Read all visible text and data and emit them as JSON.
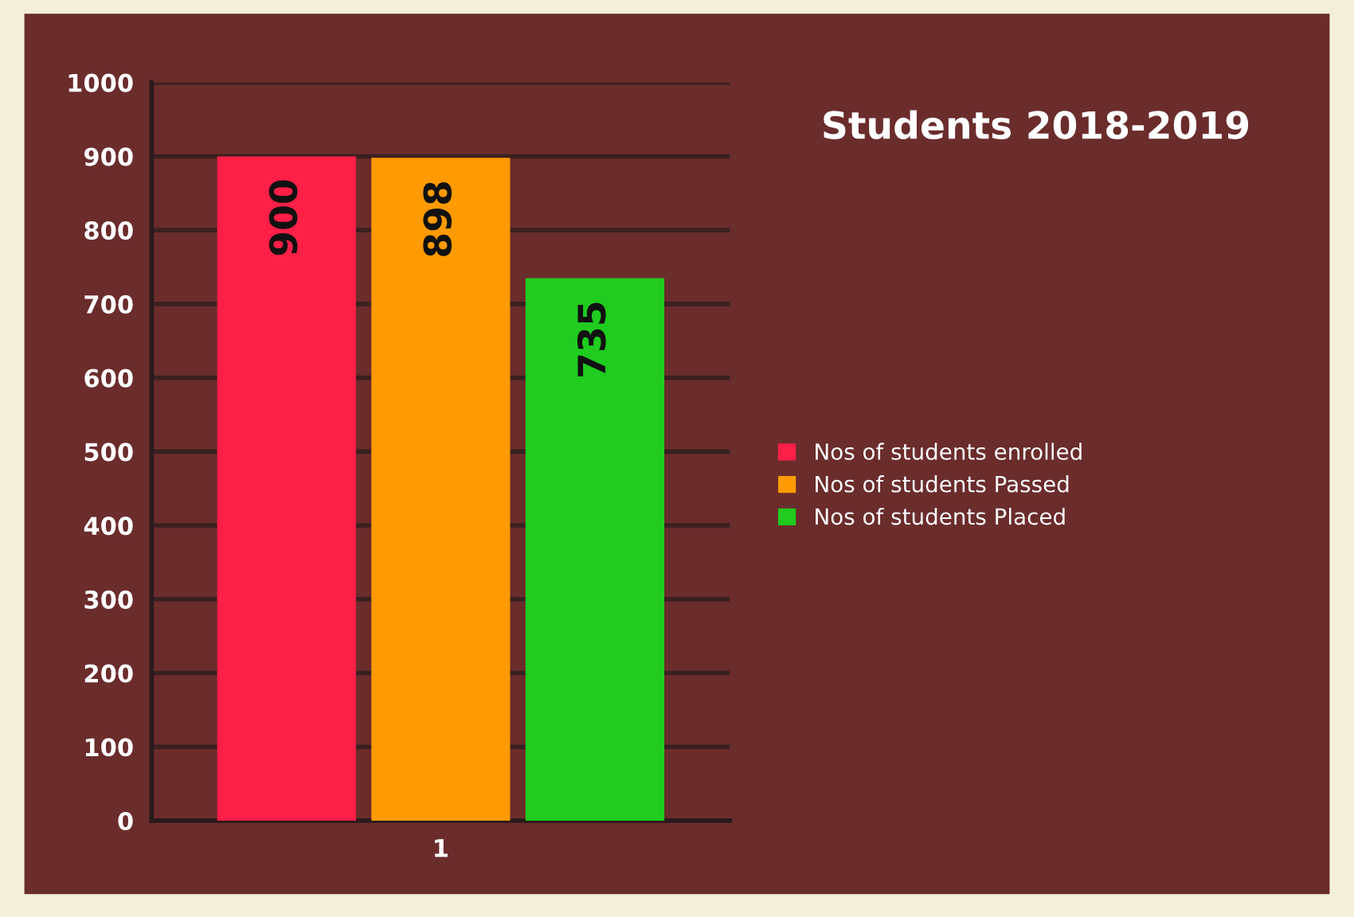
{
  "chart_data": {
    "type": "bar",
    "title": "Students 2018-2019",
    "categories": [
      "1"
    ],
    "series": [
      {
        "name": "Nos of students enrolled",
        "color": "#ff1f47",
        "values": [
          900
        ]
      },
      {
        "name": "Nos of students Passed",
        "color": "#ff9a00",
        "values": [
          898
        ]
      },
      {
        "name": "Nos of students Placed",
        "color": "#1fcc1f",
        "values": [
          735
        ]
      }
    ],
    "ylim": [
      0,
      1000
    ],
    "yticks": [
      0,
      100,
      200,
      300,
      400,
      500,
      600,
      700,
      800,
      900,
      1000
    ],
    "grid": "y",
    "legend": "right",
    "data_labels": true
  }
}
